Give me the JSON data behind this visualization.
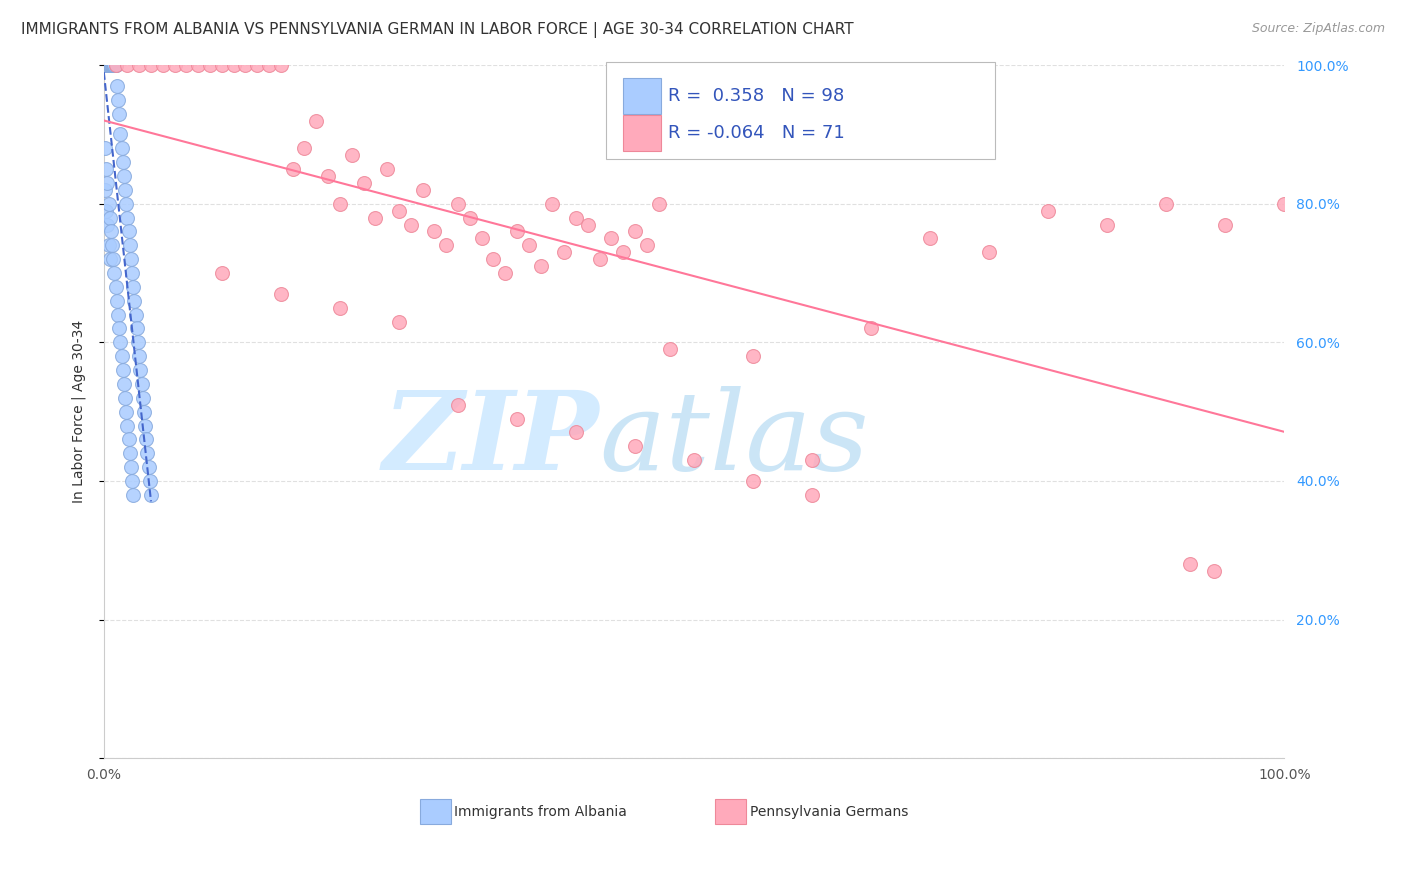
{
  "title": "IMMIGRANTS FROM ALBANIA VS PENNSYLVANIA GERMAN IN LABOR FORCE | AGE 30-34 CORRELATION CHART",
  "source": "Source: ZipAtlas.com",
  "ylabel": "In Labor Force | Age 30-34",
  "background_color": "#ffffff",
  "grid_color": "#e0e0e0",
  "albania_color": "#aaccff",
  "albania_edge_color": "#88aadd",
  "pa_german_color": "#ffaabb",
  "pa_german_edge_color": "#ee8899",
  "albania_R": 0.358,
  "albania_N": 98,
  "pa_german_R": -0.064,
  "pa_german_N": 71,
  "legend_text_color": "#3355bb",
  "legend_label_albania": "Immigrants from Albania",
  "legend_label_pa": "Pennsylvania Germans",
  "albania_trend_color": "#4466cc",
  "pa_trend_color": "#ff7799",
  "xlim": [
    0.0,
    1.0
  ],
  "ylim": [
    0.0,
    1.0
  ],
  "albania_x": [
    0.001,
    0.001,
    0.001,
    0.001,
    0.001,
    0.001,
    0.001,
    0.001,
    0.002,
    0.002,
    0.002,
    0.002,
    0.002,
    0.002,
    0.002,
    0.003,
    0.003,
    0.003,
    0.003,
    0.003,
    0.004,
    0.004,
    0.004,
    0.004,
    0.005,
    0.005,
    0.005,
    0.006,
    0.006,
    0.006,
    0.007,
    0.007,
    0.008,
    0.008,
    0.009,
    0.009,
    0.01,
    0.01,
    0.011,
    0.012,
    0.013,
    0.014,
    0.015,
    0.016,
    0.017,
    0.018,
    0.019,
    0.02,
    0.021,
    0.022,
    0.023,
    0.024,
    0.025,
    0.026,
    0.027,
    0.028,
    0.029,
    0.03,
    0.031,
    0.032,
    0.033,
    0.034,
    0.035,
    0.036,
    0.037,
    0.038,
    0.039,
    0.04,
    0.001,
    0.001,
    0.002,
    0.002,
    0.003,
    0.003,
    0.004,
    0.004,
    0.005,
    0.005,
    0.006,
    0.007,
    0.008,
    0.009,
    0.01,
    0.011,
    0.012,
    0.013,
    0.014,
    0.015,
    0.016,
    0.017,
    0.018,
    0.019,
    0.02,
    0.021,
    0.022,
    0.023,
    0.024,
    0.025
  ],
  "albania_y": [
    1.0,
    1.0,
    1.0,
    1.0,
    1.0,
    1.0,
    1.0,
    1.0,
    1.0,
    1.0,
    1.0,
    1.0,
    1.0,
    1.0,
    1.0,
    1.0,
    1.0,
    1.0,
    1.0,
    1.0,
    1.0,
    1.0,
    1.0,
    1.0,
    1.0,
    1.0,
    1.0,
    1.0,
    1.0,
    1.0,
    1.0,
    1.0,
    1.0,
    1.0,
    1.0,
    1.0,
    1.0,
    1.0,
    0.97,
    0.95,
    0.93,
    0.9,
    0.88,
    0.86,
    0.84,
    0.82,
    0.8,
    0.78,
    0.76,
    0.74,
    0.72,
    0.7,
    0.68,
    0.66,
    0.64,
    0.62,
    0.6,
    0.58,
    0.56,
    0.54,
    0.52,
    0.5,
    0.48,
    0.46,
    0.44,
    0.42,
    0.4,
    0.38,
    0.88,
    0.82,
    0.85,
    0.79,
    0.83,
    0.77,
    0.8,
    0.74,
    0.78,
    0.72,
    0.76,
    0.74,
    0.72,
    0.7,
    0.68,
    0.66,
    0.64,
    0.62,
    0.6,
    0.58,
    0.56,
    0.54,
    0.52,
    0.5,
    0.48,
    0.46,
    0.44,
    0.42,
    0.4,
    0.38
  ],
  "pa_german_x": [
    0.01,
    0.02,
    0.03,
    0.04,
    0.05,
    0.06,
    0.07,
    0.08,
    0.09,
    0.1,
    0.11,
    0.12,
    0.13,
    0.14,
    0.15,
    0.16,
    0.17,
    0.18,
    0.19,
    0.2,
    0.21,
    0.22,
    0.23,
    0.24,
    0.25,
    0.26,
    0.27,
    0.28,
    0.29,
    0.3,
    0.31,
    0.32,
    0.33,
    0.34,
    0.35,
    0.36,
    0.37,
    0.38,
    0.39,
    0.4,
    0.41,
    0.42,
    0.43,
    0.44,
    0.45,
    0.46,
    0.47,
    0.48,
    0.55,
    0.6,
    0.65,
    0.7,
    0.75,
    0.8,
    0.85,
    0.9,
    0.95,
    1.0,
    0.1,
    0.15,
    0.2,
    0.25,
    0.3,
    0.35,
    0.4,
    0.45,
    0.5,
    0.55,
    0.6,
    0.92,
    0.94
  ],
  "pa_german_y": [
    1.0,
    1.0,
    1.0,
    1.0,
    1.0,
    1.0,
    1.0,
    1.0,
    1.0,
    1.0,
    1.0,
    1.0,
    1.0,
    1.0,
    1.0,
    0.85,
    0.88,
    0.92,
    0.84,
    0.8,
    0.87,
    0.83,
    0.78,
    0.85,
    0.79,
    0.77,
    0.82,
    0.76,
    0.74,
    0.8,
    0.78,
    0.75,
    0.72,
    0.7,
    0.76,
    0.74,
    0.71,
    0.8,
    0.73,
    0.78,
    0.77,
    0.72,
    0.75,
    0.73,
    0.76,
    0.74,
    0.8,
    0.59,
    0.58,
    0.43,
    0.62,
    0.75,
    0.73,
    0.79,
    0.77,
    0.8,
    0.77,
    0.8,
    0.7,
    0.67,
    0.65,
    0.63,
    0.51,
    0.49,
    0.47,
    0.45,
    0.43,
    0.4,
    0.38,
    0.28,
    0.27
  ]
}
